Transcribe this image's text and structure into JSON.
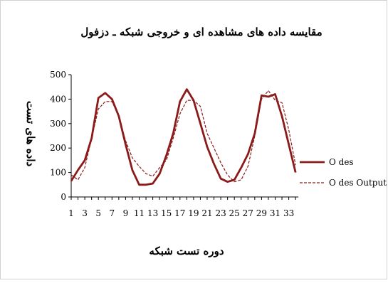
{
  "chart_data": {
    "type": "line",
    "title": "مقایسه داده های مشاهده ای و خروجی شبکه ـ دزفول",
    "xlabel": "دوره تست شبکه",
    "ylabel": "داده های تست",
    "x": [
      1,
      2,
      3,
      4,
      5,
      6,
      7,
      8,
      9,
      10,
      11,
      12,
      13,
      14,
      15,
      16,
      17,
      18,
      19,
      20,
      21,
      22,
      23,
      24,
      25,
      26,
      27,
      28,
      29,
      30,
      31,
      32,
      33,
      34
    ],
    "xticks": [
      "1",
      "3",
      "5",
      "7",
      "9",
      "11",
      "13",
      "15",
      "17",
      "19",
      "21",
      "23",
      "25",
      "27",
      "29",
      "31",
      "33"
    ],
    "ylim": [
      0,
      500
    ],
    "yticks": [
      "0",
      "100",
      "200",
      "300",
      "400",
      "500"
    ],
    "grid": false,
    "legend": "right",
    "series": [
      {
        "name": "O des",
        "color": "#8b1a1a",
        "style": "solid",
        "values": [
          65,
          110,
          150,
          240,
          405,
          425,
          400,
          330,
          215,
          110,
          50,
          50,
          55,
          95,
          170,
          260,
          390,
          440,
          395,
          300,
          205,
          135,
          75,
          62,
          70,
          120,
          175,
          260,
          415,
          410,
          420,
          330,
          215,
          100
        ]
      },
      {
        "name": "O des Output",
        "color": "#8b1a1a",
        "style": "dashed",
        "values": [
          90,
          70,
          120,
          240,
          360,
          390,
          390,
          330,
          230,
          160,
          125,
          95,
          85,
          120,
          150,
          240,
          340,
          395,
          395,
          370,
          260,
          200,
          140,
          90,
          62,
          70,
          125,
          250,
          400,
          435,
          395,
          385,
          275,
          130
        ]
      }
    ]
  }
}
